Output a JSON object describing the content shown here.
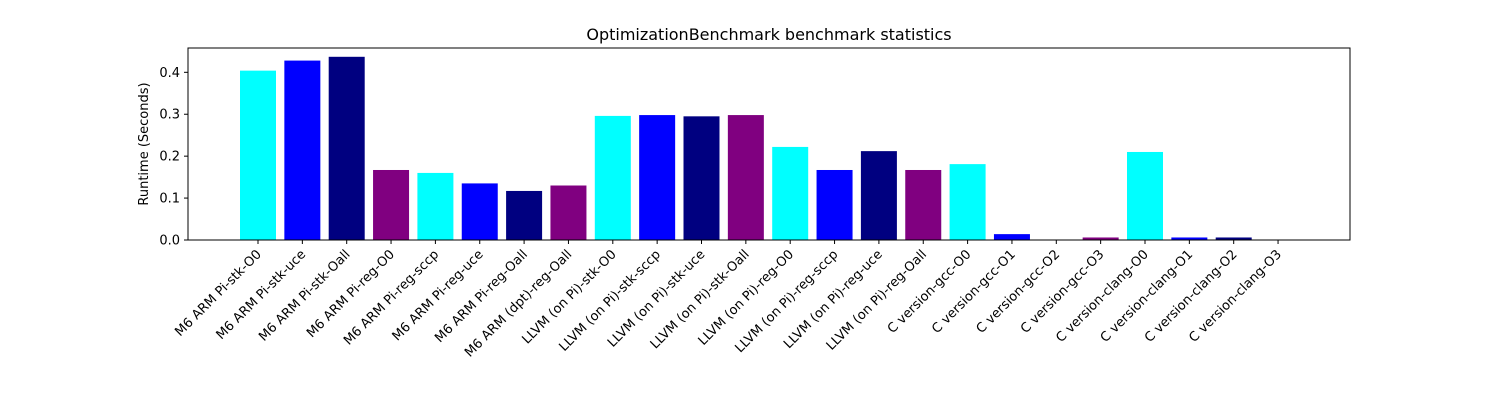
{
  "chart_data": {
    "type": "bar",
    "title": "OptimizationBenchmark benchmark statistics",
    "xlabel": "",
    "ylabel": "Runtime (Seconds)",
    "ylim": [
      0,
      0.458
    ],
    "yticks": [
      0.0,
      0.1,
      0.2,
      0.3,
      0.4
    ],
    "ytick_labels": [
      "0.0",
      "0.1",
      "0.2",
      "0.3",
      "0.4"
    ],
    "grid": false,
    "categories": [
      "M6 ARM Pi-stk-O0",
      "M6 ARM Pi-stk-uce",
      "M6 ARM Pi-stk-Oall",
      "M6 ARM Pi-reg-O0",
      "M6 ARM Pi-reg-sccp",
      "M6 ARM Pi-reg-uce",
      "M6 ARM Pi-reg-Oall",
      "M6 ARM (dpt)-reg-Oall",
      "LLVM (on Pi)-stk-O0",
      "LLVM (on Pi)-stk-sccp",
      "LLVM (on Pi)-stk-uce",
      "LLVM (on Pi)-stk-Oall",
      "LLVM (on Pi)-reg-O0",
      "LLVM (on Pi)-reg-sccp",
      "LLVM (on Pi)-reg-uce",
      "LLVM (on Pi)-reg-Oall",
      "C version-gcc-O0",
      "C version-gcc-O1",
      "C version-gcc-O2",
      "C version-gcc-O3",
      "C version-clang-O0",
      "C version-clang-O1",
      "C version-clang-O2",
      "C version-clang-O3"
    ],
    "values": [
      0.404,
      0.428,
      0.437,
      0.167,
      0.16,
      0.135,
      0.117,
      0.13,
      0.296,
      0.298,
      0.295,
      0.298,
      0.222,
      0.167,
      0.212,
      0.167,
      0.181,
      0.014,
      0.0,
      0.006,
      0.21,
      0.006,
      0.006,
      0.0
    ],
    "colors": [
      "#00ffff",
      "#0000ff",
      "#000080",
      "#800080",
      "#00ffff",
      "#0000ff",
      "#000080",
      "#800080",
      "#00ffff",
      "#0000ff",
      "#000080",
      "#800080",
      "#00ffff",
      "#0000ff",
      "#000080",
      "#800080",
      "#00ffff",
      "#0000ff",
      "#000080",
      "#800080",
      "#00ffff",
      "#0000ff",
      "#000080",
      "#800080"
    ]
  }
}
